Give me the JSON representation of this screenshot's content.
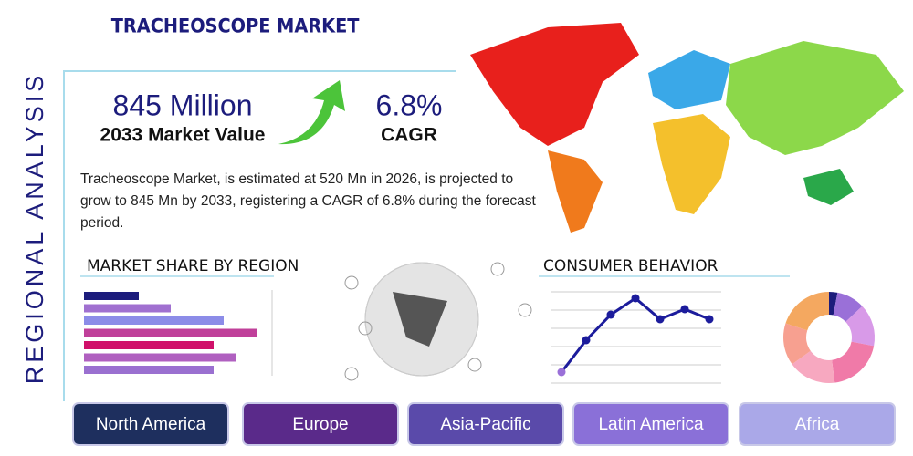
{
  "header": {
    "title": "TRACHEOSCOPE MARKET",
    "side_label": "REGIONAL ANALYSIS"
  },
  "stats": [
    {
      "value": "845 Million",
      "label": "2033 Market Value"
    },
    {
      "value": "6.8%",
      "label": "CAGR"
    }
  ],
  "description": "Tracheoscope Market, is estimated at 520 Mn in 2026, is projected to grow to 845 Mn by 2033, registering a CAGR of 6.8% during the forecast period.",
  "market_share": {
    "type": "bar",
    "title": "MARKET SHARE BY REGION",
    "values": [
      60,
      95,
      153,
      189,
      142,
      166,
      142
    ],
    "colors": [
      "#1c1c7c",
      "#a070d0",
      "#8c8ce8",
      "#c0409a",
      "#d0106a",
      "#b060c0",
      "#9a70d0"
    ],
    "xlim": [
      0,
      200
    ]
  },
  "consumer_behavior": {
    "type": "line",
    "title": "CONSUMER BEHAVIOR",
    "values": [
      12,
      47,
      75,
      93,
      70,
      81,
      70
    ],
    "color": "#1c1c9c",
    "ylim": [
      0,
      100
    ],
    "yticks": [
      0,
      20,
      40,
      60,
      80,
      100
    ],
    "grid": true
  },
  "donut": {
    "type": "pie",
    "values": [
      3,
      10,
      15,
      20,
      17,
      15,
      20
    ],
    "colors": [
      "#1c1c7c",
      "#9a70d8",
      "#d89ae8",
      "#f07aa8",
      "#f7a8c0",
      "#f7a090",
      "#f4a860"
    ]
  },
  "regions": [
    {
      "label": "North America",
      "color": "#1e2f5e"
    },
    {
      "label": "Europe",
      "color": "#5a2a8a"
    },
    {
      "label": "Asia-Pacific",
      "color": "#5a4aaa"
    },
    {
      "label": "Latin America",
      "color": "#8a70d8"
    },
    {
      "label": "Africa",
      "color": "#aaa8e8"
    }
  ]
}
